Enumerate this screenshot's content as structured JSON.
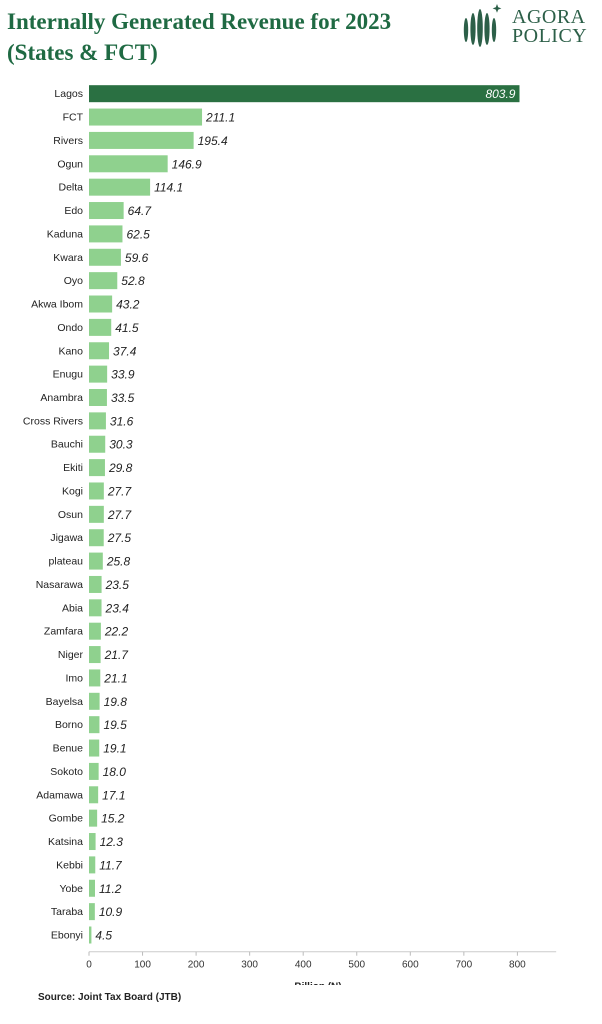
{
  "title_line1": "Internally Generated Revenue for 2023",
  "title_line2": "(States & FCT)",
  "logo": {
    "line1": "AGORA",
    "line2": "POLICY",
    "color": "#2c5f48"
  },
  "source": "Source: Joint Tax Board (JTB)",
  "colors": {
    "highlight": "#2a7042",
    "bar": "#8fd18e",
    "title": "#1f6a43"
  },
  "chart_data": {
    "type": "bar",
    "orientation": "horizontal",
    "categories": [
      "Lagos",
      "FCT",
      "Rivers",
      "Ogun",
      "Delta",
      "Edo",
      "Kaduna",
      "Kwara",
      "Oyo",
      "Akwa Ibom",
      "Ondo",
      "Kano",
      "Enugu",
      "Anambra",
      "Cross Rivers",
      "Bauchi",
      "Ekiti",
      "Kogi",
      "Osun",
      "Jigawa",
      "plateau",
      "Nasarawa",
      "Abia",
      "Zamfara",
      "Niger",
      "Imo",
      "Bayelsa",
      "Borno",
      "Benue",
      "Sokoto",
      "Adamawa",
      "Gombe",
      "Katsina",
      "Kebbi",
      "Yobe",
      "Taraba",
      "Ebonyi"
    ],
    "values": [
      803.9,
      211.1,
      195.4,
      146.9,
      114.1,
      64.7,
      62.5,
      59.6,
      52.8,
      43.2,
      41.5,
      37.4,
      33.9,
      33.5,
      31.6,
      30.3,
      29.8,
      27.7,
      27.7,
      27.5,
      25.8,
      23.5,
      23.4,
      22.2,
      21.7,
      21.1,
      19.8,
      19.5,
      19.1,
      18.0,
      17.1,
      15.2,
      12.3,
      11.7,
      11.2,
      10.9,
      4.5
    ],
    "value_labels": [
      "803.9",
      "211.1",
      "195.4",
      "146.9",
      "114.1",
      "64.7",
      "62.5",
      "59.6",
      "52.8",
      "43.2",
      "41.5",
      "37.4",
      "33.9",
      "33.5",
      "31.6",
      "30.3",
      "29.8",
      "27.7",
      "27.7",
      "27.5",
      "25.8",
      "23.5",
      "23.4",
      "22.2",
      "21.7",
      "21.1",
      "19.8",
      "19.5",
      "19.1",
      "18.0",
      "17.1",
      "15.2",
      "12.3",
      "11.7",
      "11.2",
      "10.9",
      "4.5"
    ],
    "xlabel": "Billion (N)",
    "xticks": [
      0,
      100,
      200,
      300,
      400,
      500,
      600,
      700,
      800
    ],
    "xlim": [
      0,
      850
    ],
    "grid": false,
    "highlight_category": "Lagos"
  }
}
